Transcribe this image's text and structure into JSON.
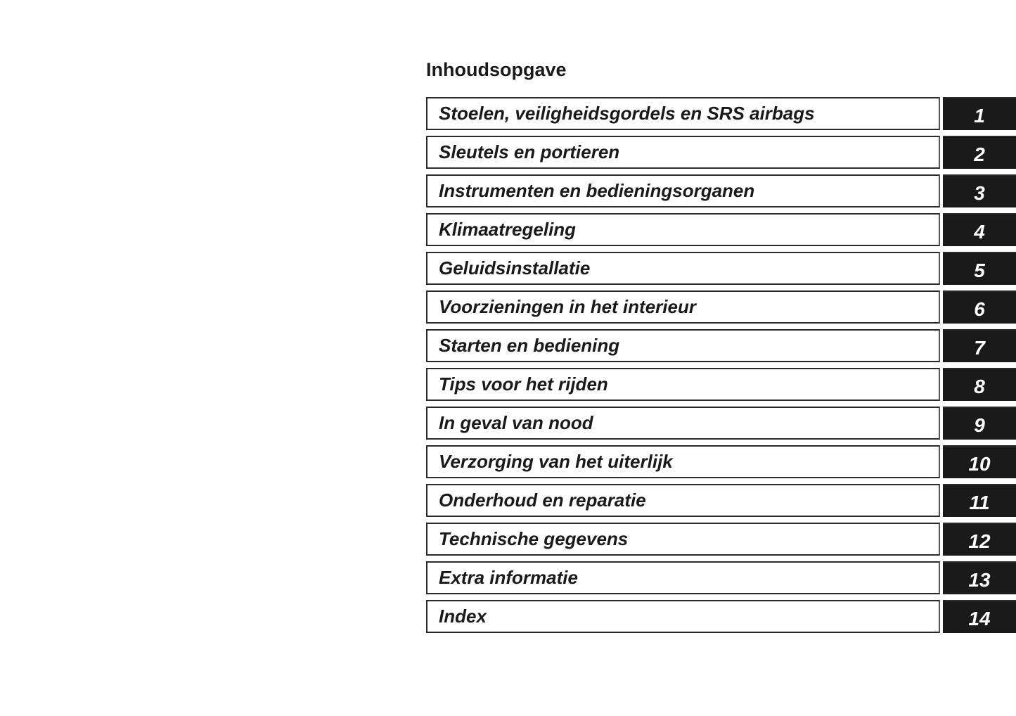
{
  "title": "Inhoudsopgave",
  "chapters": [
    {
      "label": "Stoelen, veiligheidsgordels en SRS airbags",
      "number": "1"
    },
    {
      "label": "Sleutels en portieren",
      "number": "2"
    },
    {
      "label": "Instrumenten en bedieningsorganen",
      "number": "3"
    },
    {
      "label": "Klimaatregeling",
      "number": "4"
    },
    {
      "label": "Geluidsinstallatie",
      "number": "5"
    },
    {
      "label": "Voorzieningen in het interieur",
      "number": "6"
    },
    {
      "label": "Starten en bediening",
      "number": "7"
    },
    {
      "label": "Tips voor het rijden",
      "number": "8"
    },
    {
      "label": "In geval van nood",
      "number": "9"
    },
    {
      "label": "Verzorging van het uiterlijk",
      "number": "10"
    },
    {
      "label": "Onderhoud en reparatie",
      "number": "11"
    },
    {
      "label": "Technische gegevens",
      "number": "12"
    },
    {
      "label": "Extra informatie",
      "number": "13"
    },
    {
      "label": "Index",
      "number": "14"
    }
  ]
}
